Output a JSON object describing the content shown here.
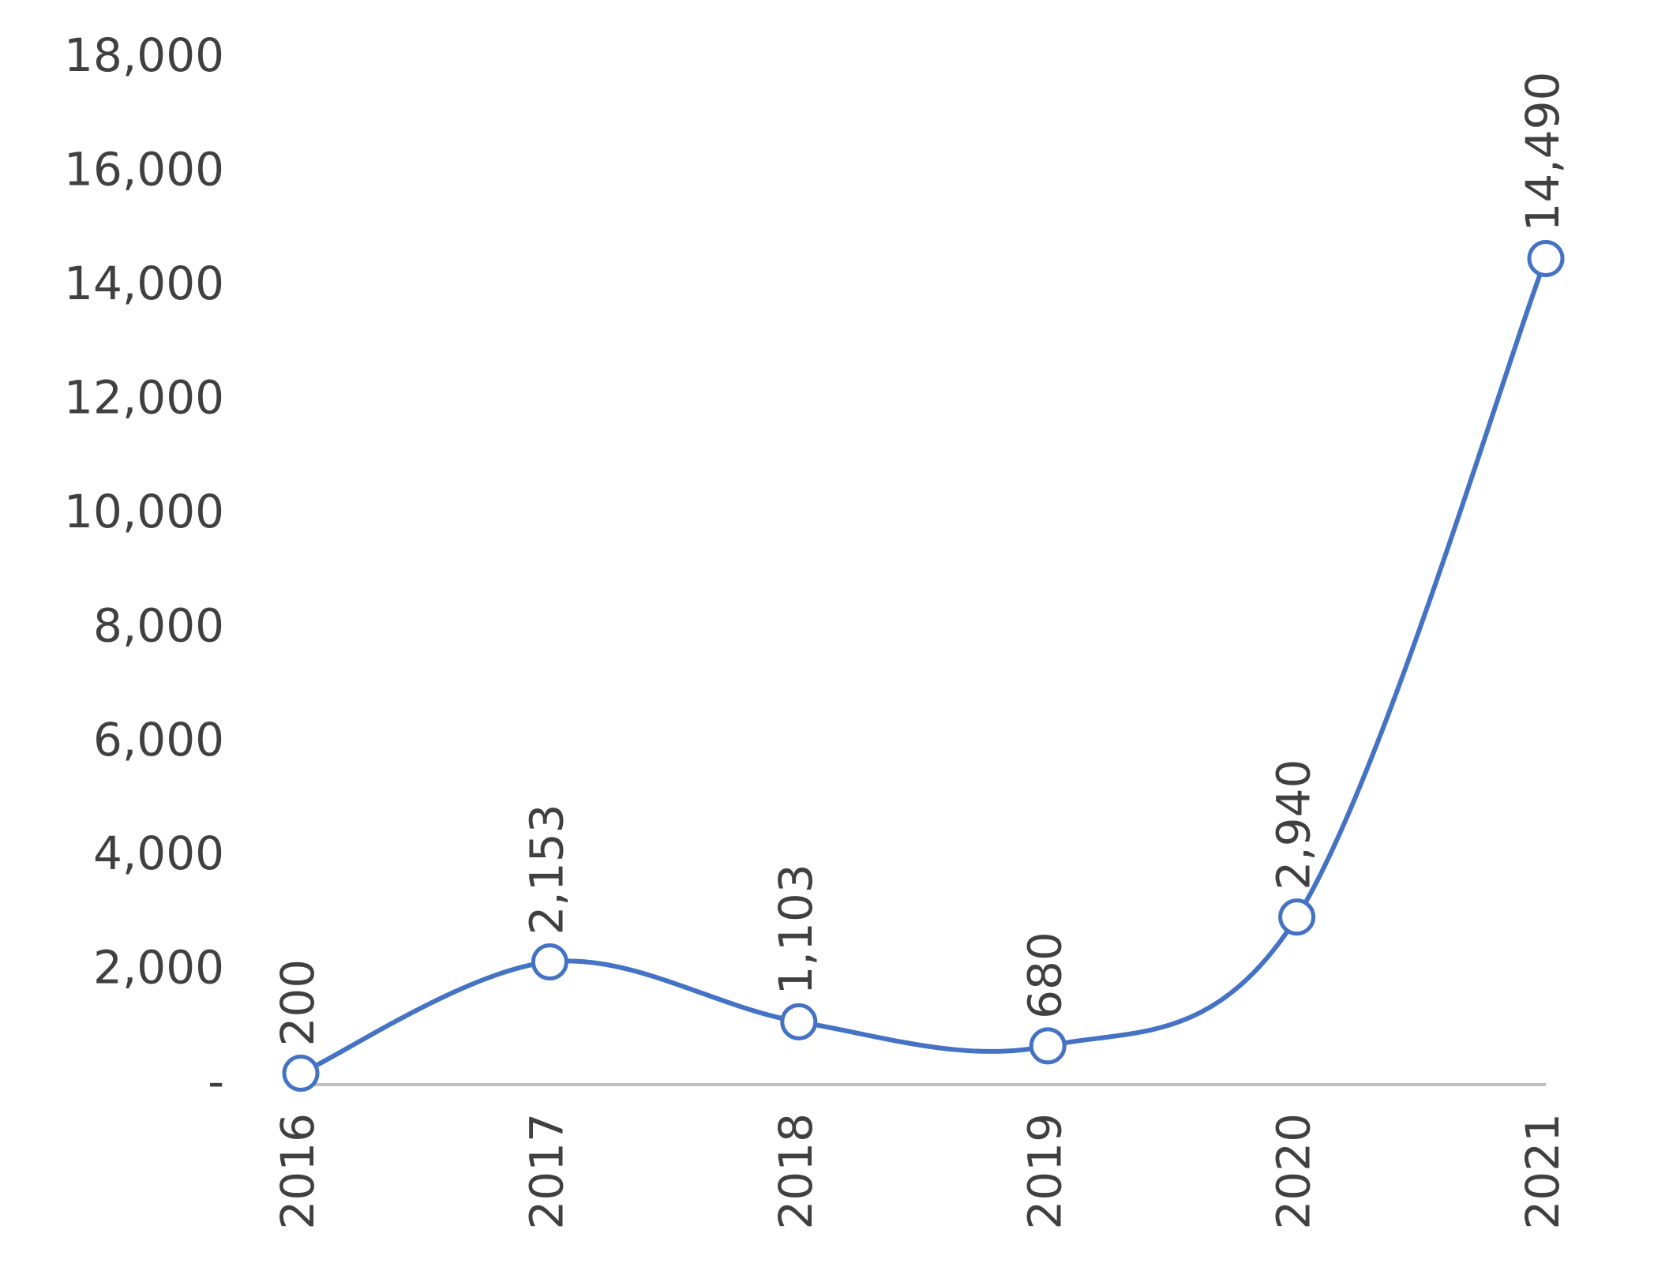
{
  "chart_data": {
    "type": "line",
    "categories": [
      "2016",
      "2017",
      "2018",
      "2019",
      "2020",
      "2021"
    ],
    "series": [
      {
        "color": "#4472c4",
        "values": [
          200,
          2153,
          1103,
          680,
          2940,
          14490
        ],
        "value_labels": [
          "200",
          "2,153",
          "1,103",
          "680",
          "2,940",
          "14,490"
        ]
      }
    ],
    "ylim": [
      0,
      18000
    ],
    "yticks": [
      {
        "value": 0,
        "label": "-"
      },
      {
        "value": 2000,
        "label": "2,000"
      },
      {
        "value": 4000,
        "label": "4,000"
      },
      {
        "value": 6000,
        "label": "6,000"
      },
      {
        "value": 8000,
        "label": "8,000"
      },
      {
        "value": 10000,
        "label": "10,000"
      },
      {
        "value": 12000,
        "label": "12,000"
      },
      {
        "value": 14000,
        "label": "14,000"
      },
      {
        "value": 16000,
        "label": "16,000"
      },
      {
        "value": 18000,
        "label": "18,000"
      }
    ],
    "smooth": true
  }
}
